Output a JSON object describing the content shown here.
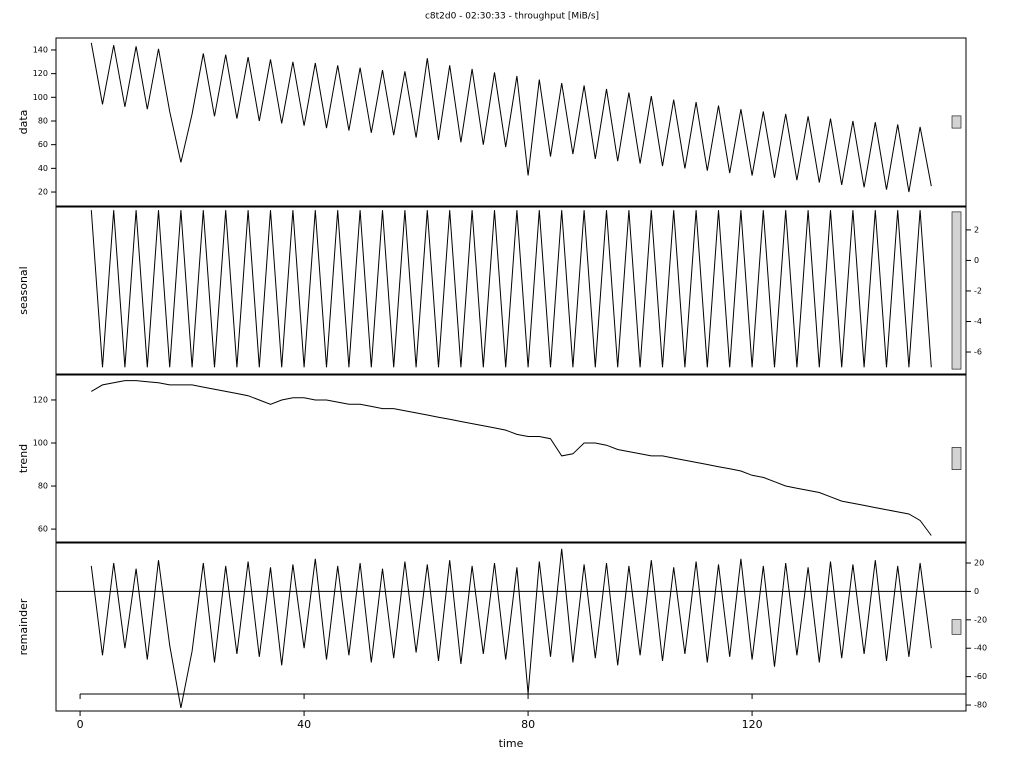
{
  "chart_data": [
    {
      "type": "line",
      "title": "c8t2d0 - 02:30:33 - throughput [MiB/s]",
      "ylabel": "data",
      "color": "#000000",
      "ytick_side": "left",
      "range_bar_length": 10.3,
      "xlim": [
        -4.3,
        158.2
      ],
      "ylim": [
        8.2,
        150.1
      ],
      "yticks": [
        20,
        40,
        60,
        80,
        100,
        120,
        140
      ],
      "x": [
        2,
        4,
        6,
        8,
        10,
        12,
        14,
        16,
        18,
        20,
        22,
        24,
        26,
        28,
        30,
        32,
        34,
        36,
        38,
        40,
        42,
        44,
        46,
        48,
        50,
        52,
        54,
        56,
        58,
        60,
        62,
        64,
        66,
        68,
        70,
        72,
        74,
        76,
        78,
        80,
        82,
        84,
        86,
        88,
        90,
        92,
        94,
        96,
        98,
        100,
        102,
        104,
        106,
        108,
        110,
        112,
        114,
        116,
        118,
        120,
        122,
        124,
        126,
        128,
        130,
        132,
        134,
        136,
        138,
        140,
        142,
        144,
        146,
        148,
        150,
        152
      ],
      "values": [
        146,
        94,
        144,
        92,
        143,
        90,
        141,
        88,
        45,
        86,
        137,
        84,
        136,
        82,
        134,
        80,
        132,
        78,
        130,
        76,
        129,
        74,
        127,
        72,
        125,
        70,
        123,
        68,
        122,
        66,
        133,
        64,
        127,
        62,
        124,
        60,
        121,
        58,
        118,
        34,
        115,
        50,
        112,
        52,
        110,
        48,
        107,
        46,
        104,
        44,
        101,
        42,
        98,
        40,
        96,
        38,
        93,
        36,
        90,
        34,
        88,
        32,
        86,
        30,
        84,
        28,
        82,
        26,
        80,
        24,
        79,
        22,
        77,
        20,
        75,
        25
      ]
    },
    {
      "type": "line",
      "ylabel": "seasonal",
      "color": "#000000",
      "ytick_side": "right",
      "range_bar_length": 10.3,
      "xlim": [
        -4.3,
        158.2
      ],
      "ylim": [
        -7.44,
        3.5
      ],
      "yticks": [
        -6,
        -4,
        -2,
        0,
        2
      ],
      "x": [
        2,
        4,
        6,
        8,
        10,
        12,
        14,
        16,
        18,
        20,
        22,
        24,
        26,
        28,
        30,
        32,
        34,
        36,
        38,
        40,
        42,
        44,
        46,
        48,
        50,
        52,
        54,
        56,
        58,
        60,
        62,
        64,
        66,
        68,
        70,
        72,
        74,
        76,
        78,
        80,
        82,
        84,
        86,
        88,
        90,
        92,
        94,
        96,
        98,
        100,
        102,
        104,
        106,
        108,
        110,
        112,
        114,
        116,
        118,
        120,
        122,
        124,
        126,
        128,
        130,
        132,
        134,
        136,
        138,
        140,
        142,
        144,
        146,
        148,
        150,
        152
      ],
      "values": [
        3.3,
        -7,
        3.3,
        -7,
        3.3,
        -7,
        3.3,
        -7,
        3.3,
        -7,
        3.3,
        -7,
        3.3,
        -7,
        3.3,
        -7,
        3.3,
        -7,
        3.3,
        -7,
        3.3,
        -7,
        3.3,
        -7,
        3.3,
        -7,
        3.3,
        -7,
        3.3,
        -7,
        3.3,
        -7,
        3.3,
        -7,
        3.3,
        -7,
        3.3,
        -7,
        3.3,
        -7,
        3.3,
        -7,
        3.3,
        -7,
        3.3,
        -7,
        3.3,
        -7,
        3.3,
        -7,
        3.3,
        -7,
        3.3,
        -7,
        3.3,
        -7,
        3.3,
        -7,
        3.3,
        -7,
        3.3,
        -7,
        3.3,
        -7,
        3.3,
        -7,
        3.3,
        -7,
        3.3,
        -7,
        3.3,
        -7,
        3.3,
        -7,
        3.3,
        -7
      ]
    },
    {
      "type": "line",
      "ylabel": "trend",
      "color": "#000000",
      "ytick_side": "left",
      "range_bar_length": 10.3,
      "xlim": [
        -4.3,
        158.2
      ],
      "ylim": [
        54,
        131.6
      ],
      "yticks": [
        60,
        80,
        100,
        120
      ],
      "x": [
        2,
        4,
        6,
        8,
        10,
        12,
        14,
        16,
        18,
        20,
        22,
        24,
        26,
        28,
        30,
        32,
        34,
        36,
        38,
        40,
        42,
        44,
        46,
        48,
        50,
        52,
        54,
        56,
        58,
        60,
        62,
        64,
        66,
        68,
        70,
        72,
        74,
        76,
        78,
        80,
        82,
        84,
        86,
        88,
        90,
        92,
        94,
        96,
        98,
        100,
        102,
        104,
        106,
        108,
        110,
        112,
        114,
        116,
        118,
        120,
        122,
        124,
        126,
        128,
        130,
        132,
        134,
        136,
        138,
        140,
        142,
        144,
        146,
        148,
        150,
        152
      ],
      "values": [
        124,
        127,
        128,
        129,
        129,
        128.5,
        128,
        127,
        127,
        127,
        126,
        125,
        124,
        123,
        122,
        120,
        118,
        120,
        121,
        121,
        120,
        120,
        119,
        118,
        118,
        117,
        116,
        116,
        115,
        114,
        113,
        112,
        111,
        110,
        109,
        108,
        107,
        106,
        104,
        103,
        103,
        102,
        94,
        95,
        100,
        100,
        99,
        97,
        96,
        95,
        94,
        94,
        93,
        92,
        91,
        90,
        89,
        88,
        87,
        85,
        84,
        82,
        80,
        79,
        78,
        77,
        75,
        73,
        72,
        71,
        70,
        69,
        68,
        67,
        64,
        57
      ]
    },
    {
      "type": "line",
      "ylabel": "remainder",
      "xlabel": "time",
      "color": "#000000",
      "ytick_side": "right",
      "range_bar_length": 10.3,
      "reference_line": 0,
      "xlim": [
        -4.3,
        158.2
      ],
      "ylim": [
        -84.2,
        34.1
      ],
      "yticks": [
        -80,
        -60,
        -40,
        -20,
        0,
        20
      ],
      "xticks": [
        0,
        40,
        80,
        120
      ],
      "x": [
        2,
        4,
        6,
        8,
        10,
        12,
        14,
        16,
        18,
        20,
        22,
        24,
        26,
        28,
        30,
        32,
        34,
        36,
        38,
        40,
        42,
        44,
        46,
        48,
        50,
        52,
        54,
        56,
        58,
        60,
        62,
        64,
        66,
        68,
        70,
        72,
        74,
        76,
        78,
        80,
        82,
        84,
        86,
        88,
        90,
        92,
        94,
        96,
        98,
        100,
        102,
        104,
        106,
        108,
        110,
        112,
        114,
        116,
        118,
        120,
        122,
        124,
        126,
        128,
        130,
        132,
        134,
        136,
        138,
        140,
        142,
        144,
        146,
        148,
        150,
        152
      ],
      "values": [
        18,
        -45,
        20,
        -40,
        16,
        -48,
        22,
        -38,
        -82,
        -42,
        20,
        -50,
        18,
        -44,
        21,
        -46,
        17,
        -52,
        19,
        -40,
        23,
        -48,
        18,
        -45,
        20,
        -50,
        16,
        -47,
        21,
        -43,
        19,
        -49,
        22,
        -51,
        18,
        -44,
        20,
        -48,
        17,
        -72,
        21,
        -46,
        30,
        -50,
        19,
        -47,
        20,
        -52,
        18,
        -45,
        22,
        -49,
        17,
        -44,
        21,
        -50,
        19,
        -46,
        23,
        -48,
        18,
        -53,
        20,
        -45,
        17,
        -50,
        21,
        -47,
        19,
        -44,
        22,
        -49,
        18,
        -46,
        20,
        -40
      ]
    }
  ]
}
